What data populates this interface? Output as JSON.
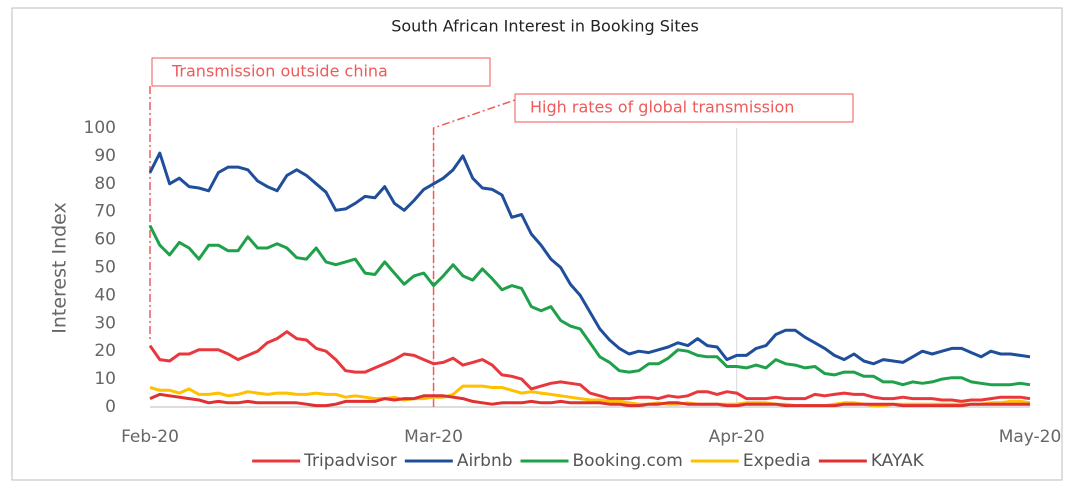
{
  "chart_data": {
    "type": "line",
    "title": "South African Interest in Booking Sites",
    "y_label": "Interest Index",
    "annotations": [
      "Transmission outside china",
      "High rates of global transmission"
    ],
    "categories": [
      "Feb-20",
      null,
      null,
      null,
      null,
      null,
      null,
      null,
      null,
      null,
      null,
      null,
      null,
      null,
      null,
      null,
      null,
      null,
      null,
      null,
      null,
      null,
      null,
      null,
      null,
      null,
      null,
      null,
      null,
      "Mar-20",
      null,
      null,
      null,
      null,
      null,
      null,
      null,
      null,
      null,
      null,
      null,
      null,
      null,
      null,
      null,
      null,
      null,
      null,
      null,
      null,
      null,
      null,
      null,
      null,
      null,
      null,
      null,
      null,
      null,
      null,
      "Apr-20",
      null,
      null,
      null,
      null,
      null,
      null,
      null,
      null,
      null,
      null,
      null,
      null,
      null,
      null,
      null,
      null,
      null,
      null,
      null,
      null,
      null,
      null,
      null,
      null,
      null,
      null,
      null,
      null,
      null,
      "May-20"
    ],
    "ylim": [
      0,
      100
    ],
    "yticks": [
      0,
      10,
      20,
      30,
      40,
      50,
      60,
      70,
      80,
      90,
      100
    ],
    "grid": "x",
    "legend": "bottom",
    "series": [
      {
        "name": "Tripadvisor",
        "color": "#e8383d",
        "values": [
          22,
          17,
          16.5,
          19,
          19,
          20.5,
          20.5,
          20.5,
          19,
          17,
          18.5,
          20,
          23,
          24.5,
          27,
          24.5,
          24,
          21,
          20,
          17,
          13,
          12.5,
          12.5,
          14,
          15.5,
          17,
          19,
          18.5,
          17,
          15.5,
          16,
          17.5,
          15,
          16,
          17,
          15,
          11.5,
          11,
          10,
          6.5,
          7.5,
          8.5,
          9,
          8.5,
          8,
          5,
          4,
          3,
          3,
          3,
          3.5,
          3.5,
          3,
          4,
          3.5,
          4,
          5.5,
          5.5,
          4.5,
          5.5,
          5,
          3,
          3,
          3,
          3.5,
          3,
          3,
          3,
          4.5,
          4,
          4.5,
          5,
          4.5,
          4.5,
          3.5,
          3,
          3,
          3.5,
          3,
          3,
          3,
          2.5,
          2.5,
          2,
          2.5,
          2.5,
          3,
          3.5,
          3.5,
          3.5,
          3
        ]
      },
      {
        "name": "Airbnb",
        "color": "#1f4e9b",
        "values": [
          84,
          91,
          80,
          82,
          79,
          78.5,
          77.5,
          84,
          86,
          86,
          85,
          81,
          79,
          77.5,
          83,
          85,
          83,
          80,
          77,
          70.5,
          71,
          73,
          75.5,
          75,
          79,
          73,
          70.5,
          74,
          78,
          80,
          82,
          85,
          90,
          82,
          78.5,
          78,
          76,
          68,
          69,
          62,
          58,
          53,
          50,
          44,
          40,
          34,
          28,
          24,
          21,
          19,
          20,
          19.5,
          20.5,
          21.5,
          23,
          22,
          24.5,
          22,
          21.5,
          17,
          18.5,
          18.5,
          21,
          22,
          26,
          27.5,
          27.5,
          25,
          23,
          21,
          18.5,
          17,
          19,
          16.5,
          15.5,
          17,
          16.5,
          16,
          18,
          20,
          19,
          20,
          21,
          21,
          19.5,
          18,
          20,
          19,
          19,
          18.5,
          18
        ]
      },
      {
        "name": "Booking.com",
        "color": "#1fa04a",
        "values": [
          65,
          58,
          54.5,
          59,
          57,
          53,
          58,
          58,
          56,
          56,
          61,
          57,
          57,
          58.5,
          57,
          53.5,
          53,
          57,
          52,
          51,
          52,
          53,
          48,
          47.5,
          52,
          48,
          44,
          47,
          48,
          43.5,
          47,
          51,
          47,
          45.5,
          49.5,
          46,
          42,
          43.5,
          42.5,
          36,
          34.5,
          36,
          31,
          29,
          28,
          23,
          18,
          16,
          13,
          12.5,
          13,
          15.5,
          15.5,
          17.5,
          20.5,
          20,
          18.5,
          18,
          18,
          14.5,
          14.5,
          14,
          15,
          14,
          17,
          15.5,
          15,
          14,
          14.5,
          12,
          11.5,
          12.5,
          12.5,
          11,
          11,
          9,
          9,
          8,
          9,
          8.5,
          9,
          10,
          10.5,
          10.5,
          9,
          8.5,
          8,
          8,
          8,
          8.5,
          8
        ]
      },
      {
        "name": "Expedia",
        "color": "#ffc000",
        "values": [
          7,
          6,
          6,
          5,
          6.5,
          4.5,
          4.5,
          5,
          4,
          4.5,
          5.5,
          5,
          4.5,
          5,
          5,
          4.5,
          4.5,
          5,
          4.5,
          4.5,
          3.5,
          4,
          3.5,
          3,
          3,
          3.5,
          2.5,
          3,
          3,
          3.5,
          3.5,
          4.5,
          7.5,
          7.5,
          7.5,
          7,
          7,
          6,
          5,
          5.5,
          5,
          4.5,
          4,
          3.5,
          3,
          2.5,
          2.5,
          2,
          2,
          1.5,
          1,
          1,
          1.5,
          1,
          1,
          1.5,
          1,
          1,
          1,
          1,
          1,
          1.5,
          1.5,
          1.5,
          1,
          1,
          0.5,
          0.5,
          0.5,
          0.5,
          1,
          1.5,
          1.5,
          1,
          0.5,
          0.5,
          1,
          1,
          1,
          1,
          1,
          1,
          1,
          1,
          1,
          1,
          1.5,
          1.5,
          2,
          2,
          1.5
        ]
      },
      {
        "name": "KAYAK",
        "color": "#e03030",
        "values": [
          3,
          4.5,
          4,
          3.5,
          3,
          2.5,
          1.5,
          2,
          1.5,
          1.5,
          2,
          1.5,
          1.5,
          1.5,
          1.5,
          1.5,
          1,
          0.5,
          0.5,
          1,
          2,
          2,
          2,
          2,
          3,
          2.5,
          3,
          3,
          4,
          4,
          4,
          3.5,
          3,
          2,
          1.5,
          1,
          1.5,
          1.5,
          1.5,
          2,
          1.5,
          1.5,
          2,
          1.5,
          1.5,
          1.5,
          1.5,
          1,
          1,
          0.5,
          0.5,
          1,
          1,
          1.5,
          1.5,
          1,
          1,
          1,
          1,
          0.5,
          0.5,
          1,
          1,
          1,
          1,
          0.5,
          0.5,
          0.5,
          0.5,
          0.5,
          0.5,
          1,
          1,
          1,
          1,
          1,
          1,
          0.5,
          0.5,
          0.5,
          0.5,
          0.5,
          0.5,
          0.5,
          1,
          1,
          1,
          1,
          1,
          1,
          1
        ]
      }
    ]
  }
}
